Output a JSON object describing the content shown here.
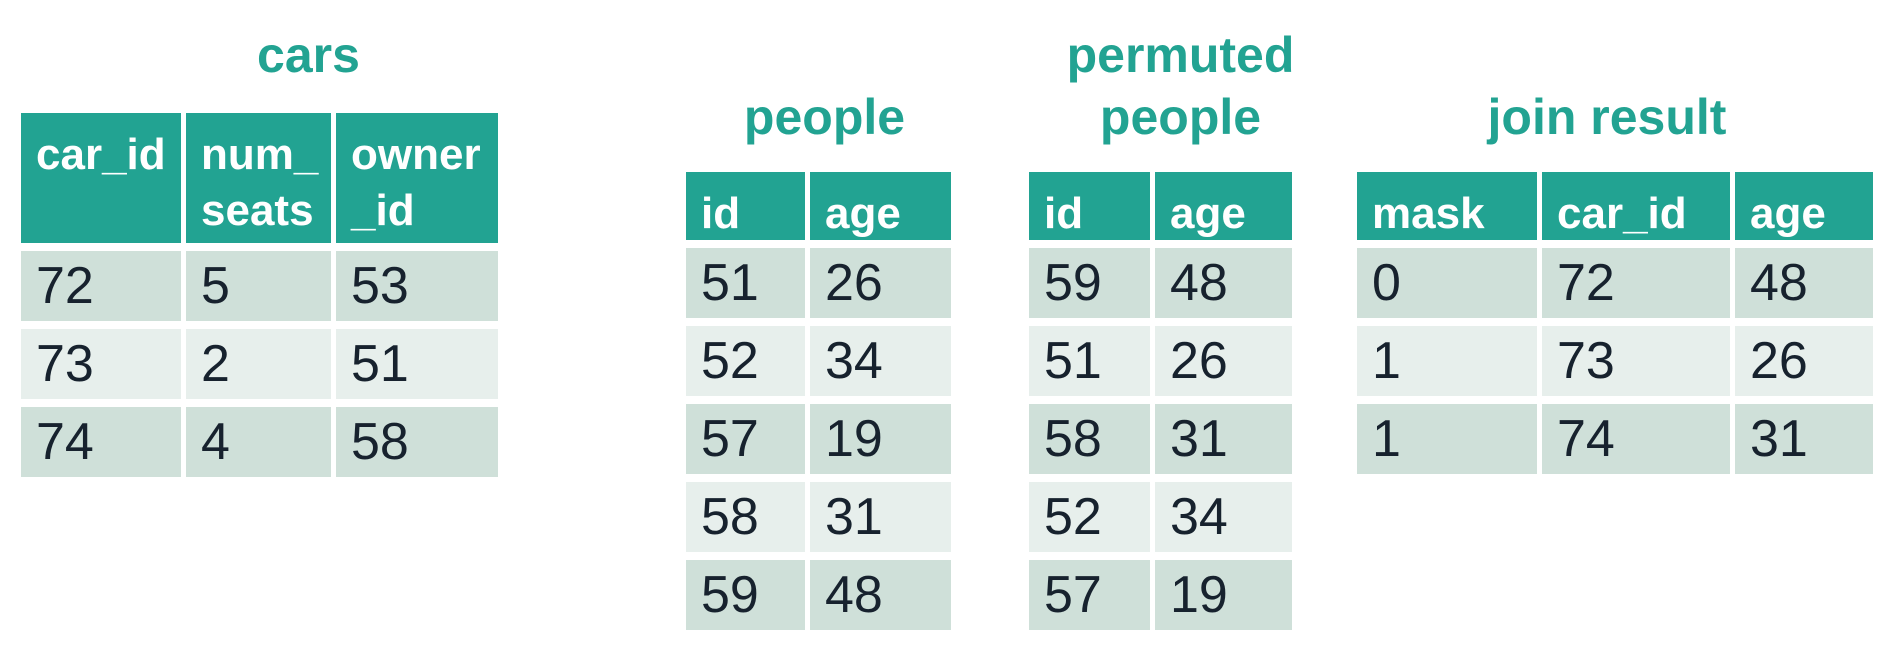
{
  "colors": {
    "accent_teal": "#22a392",
    "row_dark": "#cfe0d9",
    "row_light": "#e7efec",
    "header_text": "#ffffff",
    "cell_text": "#17222e",
    "background": "#ffffff"
  },
  "tables": {
    "cars": {
      "title": "cars",
      "headers": [
        "car_id",
        "num_\nseats",
        "owner\n_id"
      ],
      "rows": [
        [
          "72",
          "5",
          "53"
        ],
        [
          "73",
          "2",
          "51"
        ],
        [
          "74",
          "4",
          "58"
        ]
      ]
    },
    "people": {
      "title": "people",
      "headers": [
        "id",
        "age"
      ],
      "rows": [
        [
          "51",
          "26"
        ],
        [
          "52",
          "34"
        ],
        [
          "57",
          "19"
        ],
        [
          "58",
          "31"
        ],
        [
          "59",
          "48"
        ]
      ]
    },
    "permuted_people": {
      "title": "permuted\npeople",
      "headers": [
        "id",
        "age"
      ],
      "rows": [
        [
          "59",
          "48"
        ],
        [
          "51",
          "26"
        ],
        [
          "58",
          "31"
        ],
        [
          "52",
          "34"
        ],
        [
          "57",
          "19"
        ]
      ]
    },
    "join_result": {
      "title": "join result",
      "headers": [
        "mask",
        "car_id",
        "age"
      ],
      "rows": [
        [
          "0",
          "72",
          "48"
        ],
        [
          "1",
          "73",
          "26"
        ],
        [
          "1",
          "74",
          "31"
        ]
      ]
    }
  }
}
